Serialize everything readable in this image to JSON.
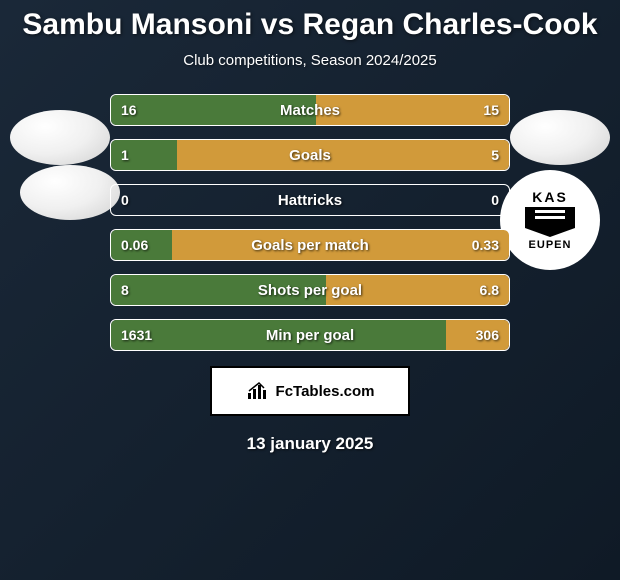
{
  "title": "Sambu Mansoni vs Regan Charles-Cook",
  "subtitle": "Club competitions, Season 2024/2025",
  "date": "13 january 2025",
  "club_badge": {
    "top_text": "KAS",
    "bottom_text": "EUPEN"
  },
  "logo": {
    "text": "FcTables.com"
  },
  "colors": {
    "left_bar": "#4a7a3a",
    "right_bar": "#d19a3a",
    "background_start": "#1a2838",
    "background_end": "#0f1a26",
    "bar_border": "#ffffff"
  },
  "stats": [
    {
      "label": "Matches",
      "left_value": "16",
      "right_value": "15",
      "left_pct": 51.6,
      "right_pct": 48.4
    },
    {
      "label": "Goals",
      "left_value": "1",
      "right_value": "5",
      "left_pct": 16.7,
      "right_pct": 83.3
    },
    {
      "label": "Hattricks",
      "left_value": "0",
      "right_value": "0",
      "left_pct": 0,
      "right_pct": 0
    },
    {
      "label": "Goals per match",
      "left_value": "0.06",
      "right_value": "0.33",
      "left_pct": 15.4,
      "right_pct": 84.6
    },
    {
      "label": "Shots per goal",
      "left_value": "8",
      "right_value": "6.8",
      "left_pct": 54.1,
      "right_pct": 45.9
    },
    {
      "label": "Min per goal",
      "left_value": "1631",
      "right_value": "306",
      "left_pct": 84.2,
      "right_pct": 15.8
    }
  ]
}
